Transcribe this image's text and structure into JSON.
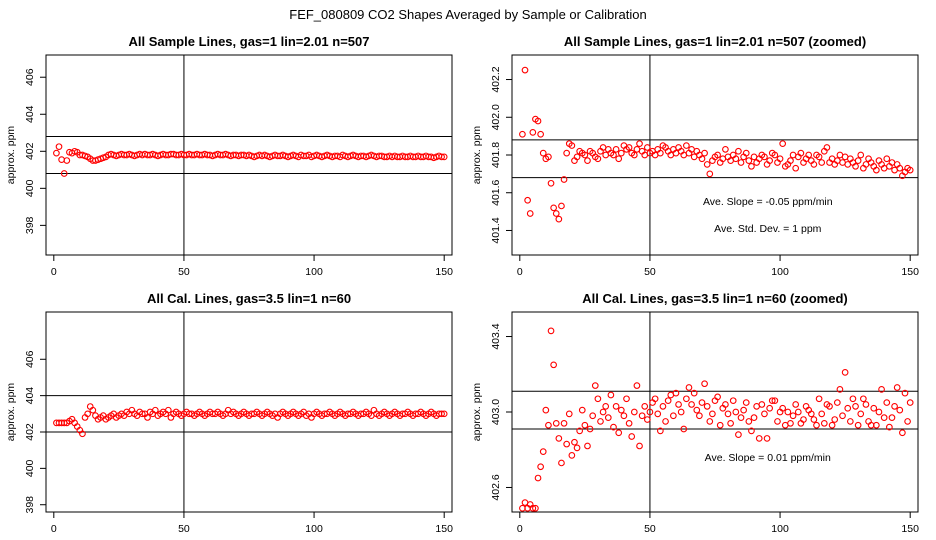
{
  "page_title": "FEF_080809  CO2 Shapes Averaged by Sample or Calibration",
  "chart_data": [
    {
      "type": "scatter",
      "title": "All Sample Lines, gas=1 lin=2.01 n=507",
      "ylabel": "approx. ppm",
      "xlim": [
        -3,
        153
      ],
      "ylim": [
        396.4,
        407.2
      ],
      "xticks": [
        0,
        50,
        100,
        150
      ],
      "yticks": [
        398,
        400,
        402,
        404,
        406
      ],
      "hlines": [
        400.8,
        402.8
      ],
      "vline": 50,
      "grid": false,
      "point_color": "#ff0000",
      "annotations": [],
      "x": [
        1,
        2,
        3,
        4,
        5,
        6,
        7,
        8,
        9,
        10,
        11,
        12,
        13,
        14,
        15,
        16,
        17,
        18,
        19,
        20,
        21,
        22,
        23,
        24,
        25,
        26,
        27,
        28,
        29,
        30,
        31,
        32,
        33,
        34,
        35,
        36,
        37,
        38,
        39,
        40,
        41,
        42,
        43,
        44,
        45,
        46,
        47,
        48,
        49,
        50,
        51,
        52,
        53,
        54,
        55,
        56,
        57,
        58,
        59,
        60,
        61,
        62,
        63,
        64,
        65,
        66,
        67,
        68,
        69,
        70,
        71,
        72,
        73,
        74,
        75,
        76,
        77,
        78,
        79,
        80,
        81,
        82,
        83,
        84,
        85,
        86,
        87,
        88,
        89,
        90,
        91,
        92,
        93,
        94,
        95,
        96,
        97,
        98,
        99,
        100,
        101,
        102,
        103,
        104,
        105,
        106,
        107,
        108,
        109,
        110,
        111,
        112,
        113,
        114,
        115,
        116,
        117,
        118,
        119,
        120,
        121,
        122,
        123,
        124,
        125,
        126,
        127,
        128,
        129,
        130,
        131,
        132,
        133,
        134,
        135,
        136,
        137,
        138,
        139,
        140,
        141,
        142,
        143,
        144,
        145,
        146,
        147,
        148,
        149,
        150
      ],
      "y": [
        401.9,
        402.25,
        401.55,
        400.8,
        401.5,
        401.95,
        401.9,
        402.0,
        401.95,
        401.8,
        401.8,
        401.75,
        401.7,
        401.6,
        401.5,
        401.5,
        401.55,
        401.6,
        401.65,
        401.7,
        401.8,
        401.85,
        401.8,
        401.75,
        401.8,
        401.85,
        401.8,
        401.8,
        401.85,
        401.8,
        401.75,
        401.8,
        401.85,
        401.8,
        401.85,
        401.8,
        401.8,
        401.85,
        401.8,
        401.75,
        401.8,
        401.85,
        401.8,
        401.8,
        401.85,
        401.85,
        401.8,
        401.8,
        401.85,
        401.8,
        401.8,
        401.85,
        401.8,
        401.8,
        401.85,
        401.8,
        401.8,
        401.85,
        401.8,
        401.8,
        401.75,
        401.8,
        401.85,
        401.8,
        401.8,
        401.85,
        401.8,
        401.75,
        401.8,
        401.8,
        401.75,
        401.8,
        401.8,
        401.75,
        401.8,
        401.75,
        401.7,
        401.75,
        401.8,
        401.75,
        401.8,
        401.75,
        401.7,
        401.75,
        401.8,
        401.75,
        401.75,
        401.8,
        401.75,
        401.7,
        401.75,
        401.8,
        401.75,
        401.7,
        401.8,
        401.75,
        401.75,
        401.8,
        401.7,
        401.75,
        401.8,
        401.75,
        401.7,
        401.75,
        401.8,
        401.75,
        401.7,
        401.75,
        401.75,
        401.7,
        401.8,
        401.75,
        401.7,
        401.75,
        401.8,
        401.75,
        401.7,
        401.75,
        401.75,
        401.7,
        401.75,
        401.8,
        401.75,
        401.7,
        401.75,
        401.75,
        401.7,
        401.7,
        401.75,
        401.7,
        401.75,
        401.7,
        401.7,
        401.75,
        401.7,
        401.7,
        401.75,
        401.7,
        401.7,
        401.75,
        401.7,
        401.7,
        401.75,
        401.7,
        401.7,
        401.65,
        401.7,
        401.75,
        401.7,
        401.7
      ]
    },
    {
      "type": "scatter",
      "title": "All Sample Lines, gas=1 lin=2.01 n=507 (zoomed)",
      "ylabel": "approx. ppm",
      "xlim": [
        -3,
        153
      ],
      "ylim": [
        401.27,
        402.33
      ],
      "xticks": [
        0,
        50,
        100,
        150
      ],
      "yticks": [
        401.4,
        401.6,
        401.8,
        402.0,
        402.2
      ],
      "hlines": [
        401.68,
        401.88
      ],
      "vline": 50,
      "grid": false,
      "point_color": "#ff0000",
      "annotations": [
        "Ave. Slope =  -0.05  ppm/min",
        "Ave. Std. Dev. =  1  ppm"
      ],
      "x": [
        1,
        2,
        3,
        4,
        5,
        6,
        7,
        8,
        9,
        10,
        11,
        12,
        13,
        14,
        15,
        16,
        17,
        18,
        19,
        20,
        21,
        22,
        23,
        24,
        25,
        26,
        27,
        28,
        29,
        30,
        31,
        32,
        33,
        34,
        35,
        36,
        37,
        38,
        39,
        40,
        41,
        42,
        43,
        44,
        45,
        46,
        47,
        48,
        49,
        50,
        51,
        52,
        53,
        54,
        55,
        56,
        57,
        58,
        59,
        60,
        61,
        62,
        63,
        64,
        65,
        66,
        67,
        68,
        69,
        70,
        71,
        72,
        73,
        74,
        75,
        76,
        77,
        78,
        79,
        80,
        81,
        82,
        83,
        84,
        85,
        86,
        87,
        88,
        89,
        90,
        91,
        92,
        93,
        94,
        95,
        96,
        97,
        98,
        99,
        100,
        101,
        102,
        103,
        104,
        105,
        106,
        107,
        108,
        109,
        110,
        111,
        112,
        113,
        114,
        115,
        116,
        117,
        118,
        119,
        120,
        121,
        122,
        123,
        124,
        125,
        126,
        127,
        128,
        129,
        130,
        131,
        132,
        133,
        134,
        135,
        136,
        137,
        138,
        139,
        140,
        141,
        142,
        143,
        144,
        145,
        146,
        147,
        148,
        149,
        150
      ],
      "y": [
        401.91,
        402.25,
        401.56,
        401.49,
        401.92,
        401.99,
        401.98,
        401.91,
        401.81,
        401.78,
        401.79,
        401.65,
        401.52,
        401.49,
        401.46,
        401.53,
        401.67,
        401.81,
        401.86,
        401.85,
        401.77,
        401.79,
        401.82,
        401.81,
        401.8,
        401.77,
        401.82,
        401.81,
        401.79,
        401.78,
        401.82,
        401.84,
        401.8,
        401.83,
        401.81,
        401.8,
        401.83,
        401.78,
        401.81,
        401.85,
        401.83,
        401.84,
        401.81,
        401.8,
        401.83,
        401.86,
        401.82,
        401.8,
        401.84,
        401.81,
        401.82,
        401.8,
        401.83,
        401.81,
        401.85,
        401.84,
        401.82,
        401.8,
        401.83,
        401.81,
        401.84,
        401.82,
        401.8,
        401.85,
        401.81,
        401.83,
        401.79,
        401.82,
        401.8,
        401.78,
        401.81,
        401.75,
        401.7,
        401.77,
        401.79,
        401.8,
        401.76,
        401.78,
        401.83,
        401.79,
        401.77,
        401.8,
        401.78,
        401.82,
        401.76,
        401.79,
        401.81,
        401.77,
        401.74,
        401.79,
        401.76,
        401.78,
        401.8,
        401.79,
        401.75,
        401.77,
        401.81,
        401.8,
        401.76,
        401.78,
        401.86,
        401.74,
        401.75,
        401.77,
        401.8,
        401.73,
        401.79,
        401.81,
        401.76,
        401.78,
        401.8,
        401.77,
        401.75,
        401.8,
        401.79,
        401.76,
        401.82,
        401.84,
        401.76,
        401.78,
        401.75,
        401.77,
        401.8,
        401.76,
        401.79,
        401.75,
        401.78,
        401.76,
        401.74,
        401.77,
        401.8,
        401.73,
        401.75,
        401.78,
        401.76,
        401.74,
        401.72,
        401.77,
        401.75,
        401.73,
        401.78,
        401.74,
        401.76,
        401.72,
        401.75,
        401.73,
        401.69,
        401.71,
        401.73,
        401.72
      ]
    },
    {
      "type": "scatter",
      "title": "All Cal. Lines, gas=3.5 lin=1 n=60",
      "ylabel": "approx. ppm",
      "xlim": [
        -3,
        153
      ],
      "ylim": [
        397.6,
        408.6
      ],
      "xticks": [
        0,
        50,
        100,
        150
      ],
      "yticks": [
        398,
        400,
        402,
        404,
        406
      ],
      "hlines": [
        402.0,
        404.0
      ],
      "vline": 50,
      "grid": false,
      "point_color": "#ff0000",
      "annotations": [],
      "x": [
        1,
        2,
        3,
        4,
        5,
        6,
        7,
        8,
        9,
        10,
        11,
        12,
        13,
        14,
        15,
        16,
        17,
        18,
        19,
        20,
        21,
        22,
        23,
        24,
        25,
        26,
        27,
        28,
        29,
        30,
        31,
        32,
        33,
        34,
        35,
        36,
        37,
        38,
        39,
        40,
        41,
        42,
        43,
        44,
        45,
        46,
        47,
        48,
        49,
        50,
        51,
        52,
        53,
        54,
        55,
        56,
        57,
        58,
        59,
        60,
        61,
        62,
        63,
        64,
        65,
        66,
        67,
        68,
        69,
        70,
        71,
        72,
        73,
        74,
        75,
        76,
        77,
        78,
        79,
        80,
        81,
        82,
        83,
        84,
        85,
        86,
        87,
        88,
        89,
        90,
        91,
        92,
        93,
        94,
        95,
        96,
        97,
        98,
        99,
        100,
        101,
        102,
        103,
        104,
        105,
        106,
        107,
        108,
        109,
        110,
        111,
        112,
        113,
        114,
        115,
        116,
        117,
        118,
        119,
        120,
        121,
        122,
        123,
        124,
        125,
        126,
        127,
        128,
        129,
        130,
        131,
        132,
        133,
        134,
        135,
        136,
        137,
        138,
        139,
        140,
        141,
        142,
        143,
        144,
        145,
        146,
        147,
        148,
        149,
        150
      ],
      "y": [
        402.5,
        402.5,
        402.5,
        402.5,
        402.5,
        402.6,
        402.7,
        402.5,
        402.3,
        402.1,
        401.9,
        402.8,
        403.0,
        403.4,
        403.2,
        402.9,
        402.7,
        402.8,
        402.9,
        402.7,
        402.8,
        402.9,
        403.0,
        402.8,
        402.9,
        403.0,
        402.9,
        403.1,
        403.0,
        403.2,
        403.0,
        402.9,
        403.1,
        403.0,
        403.0,
        402.8,
        403.1,
        403.0,
        403.2,
        402.9,
        403.0,
        403.1,
        403.0,
        403.2,
        402.8,
        403.0,
        403.1,
        403.0,
        402.9,
        403.0,
        403.1,
        403.0,
        403.0,
        402.9,
        403.0,
        403.1,
        403.0,
        402.9,
        403.0,
        403.1,
        403.0,
        403.0,
        403.1,
        403.0,
        402.9,
        403.0,
        403.2,
        403.0,
        403.1,
        403.0,
        402.9,
        403.0,
        403.1,
        403.0,
        402.9,
        403.0,
        403.0,
        403.1,
        403.0,
        402.9,
        403.0,
        403.1,
        403.0,
        402.9,
        403.0,
        402.8,
        403.0,
        403.1,
        403.0,
        402.9,
        403.0,
        403.1,
        403.0,
        402.9,
        403.0,
        403.1,
        402.9,
        403.0,
        402.8,
        403.0,
        403.1,
        403.0,
        402.9,
        403.0,
        403.0,
        403.1,
        403.0,
        402.9,
        403.0,
        403.1,
        403.0,
        402.9,
        403.0,
        403.0,
        403.1,
        403.0,
        402.9,
        403.0,
        403.0,
        403.1,
        403.0,
        402.9,
        403.2,
        403.0,
        402.9,
        403.0,
        403.1,
        403.0,
        402.9,
        403.0,
        403.1,
        403.0,
        402.9,
        403.0,
        403.0,
        403.1,
        403.0,
        402.9,
        403.0,
        403.0,
        403.1,
        403.0,
        402.9,
        403.0,
        403.1,
        403.0,
        402.9,
        403.0,
        403.0,
        403.0
      ]
    },
    {
      "type": "scatter",
      "title": "All Cal. Lines, gas=3.5 lin=1 n=60 (zoomed)",
      "ylabel": "approx. ppm",
      "xlim": [
        -3,
        153
      ],
      "ylim": [
        402.47,
        403.53
      ],
      "xticks": [
        0,
        50,
        100,
        150
      ],
      "yticks": [
        402.6,
        403.0,
        403.4
      ],
      "hlines": [
        402.91,
        403.11
      ],
      "vline": 50,
      "grid": false,
      "point_color": "#ff0000",
      "annotations": [
        "Ave. Slope =  0.01  ppm/min"
      ],
      "x": [
        1,
        2,
        3,
        4,
        5,
        6,
        7,
        8,
        9,
        10,
        11,
        12,
        13,
        14,
        15,
        16,
        17,
        18,
        19,
        20,
        21,
        22,
        23,
        24,
        25,
        26,
        27,
        28,
        29,
        30,
        31,
        32,
        33,
        34,
        35,
        36,
        37,
        38,
        39,
        40,
        41,
        42,
        43,
        44,
        45,
        46,
        47,
        48,
        49,
        50,
        51,
        52,
        53,
        54,
        55,
        56,
        57,
        58,
        59,
        60,
        61,
        62,
        63,
        64,
        65,
        66,
        67,
        68,
        69,
        70,
        71,
        72,
        73,
        74,
        75,
        76,
        77,
        78,
        79,
        80,
        81,
        82,
        83,
        84,
        85,
        86,
        87,
        88,
        89,
        90,
        91,
        92,
        93,
        94,
        95,
        96,
        97,
        98,
        99,
        100,
        101,
        102,
        103,
        104,
        105,
        106,
        107,
        108,
        109,
        110,
        111,
        112,
        113,
        114,
        115,
        116,
        117,
        118,
        119,
        120,
        121,
        122,
        123,
        124,
        125,
        126,
        127,
        128,
        129,
        130,
        131,
        132,
        133,
        134,
        135,
        136,
        137,
        138,
        139,
        140,
        141,
        142,
        143,
        144,
        145,
        146,
        147,
        148,
        149,
        150
      ],
      "y": [
        402.49,
        402.52,
        402.49,
        402.51,
        402.49,
        402.49,
        402.65,
        402.71,
        402.79,
        403.01,
        402.93,
        403.43,
        403.25,
        402.94,
        402.86,
        402.73,
        402.94,
        402.83,
        402.99,
        402.77,
        402.84,
        402.81,
        402.9,
        403.01,
        402.93,
        402.82,
        402.91,
        402.98,
        403.14,
        403.07,
        402.95,
        403.0,
        403.03,
        402.97,
        403.09,
        402.92,
        403.03,
        402.89,
        403.01,
        402.98,
        403.07,
        402.94,
        402.87,
        403.0,
        403.14,
        402.82,
        402.98,
        403.03,
        402.96,
        403.0,
        403.05,
        403.07,
        402.99,
        402.9,
        403.03,
        402.95,
        403.06,
        403.09,
        402.98,
        403.1,
        403.04,
        403.0,
        402.91,
        403.07,
        403.13,
        403.04,
        403.1,
        403.01,
        402.98,
        403.05,
        403.15,
        403.03,
        402.95,
        402.99,
        403.06,
        403.08,
        402.93,
        403.02,
        403.04,
        402.99,
        402.94,
        403.06,
        403.0,
        402.88,
        402.97,
        403.01,
        403.05,
        402.95,
        402.9,
        402.97,
        403.03,
        402.86,
        403.04,
        402.99,
        402.86,
        403.02,
        403.06,
        403.06,
        402.95,
        403.0,
        403.02,
        402.93,
        403.0,
        402.94,
        402.98,
        403.04,
        403.0,
        402.94,
        402.96,
        403.03,
        403.01,
        402.99,
        402.96,
        402.93,
        403.07,
        402.99,
        402.94,
        403.04,
        403.03,
        402.93,
        402.96,
        403.05,
        403.12,
        402.98,
        403.21,
        403.02,
        402.95,
        403.07,
        403.03,
        402.93,
        402.99,
        403.07,
        403.04,
        402.95,
        402.93,
        403.02,
        402.93,
        403.0,
        403.12,
        402.97,
        403.05,
        402.92,
        402.97,
        403.03,
        403.13,
        403.01,
        402.89,
        403.1,
        402.95,
        403.05
      ]
    }
  ]
}
